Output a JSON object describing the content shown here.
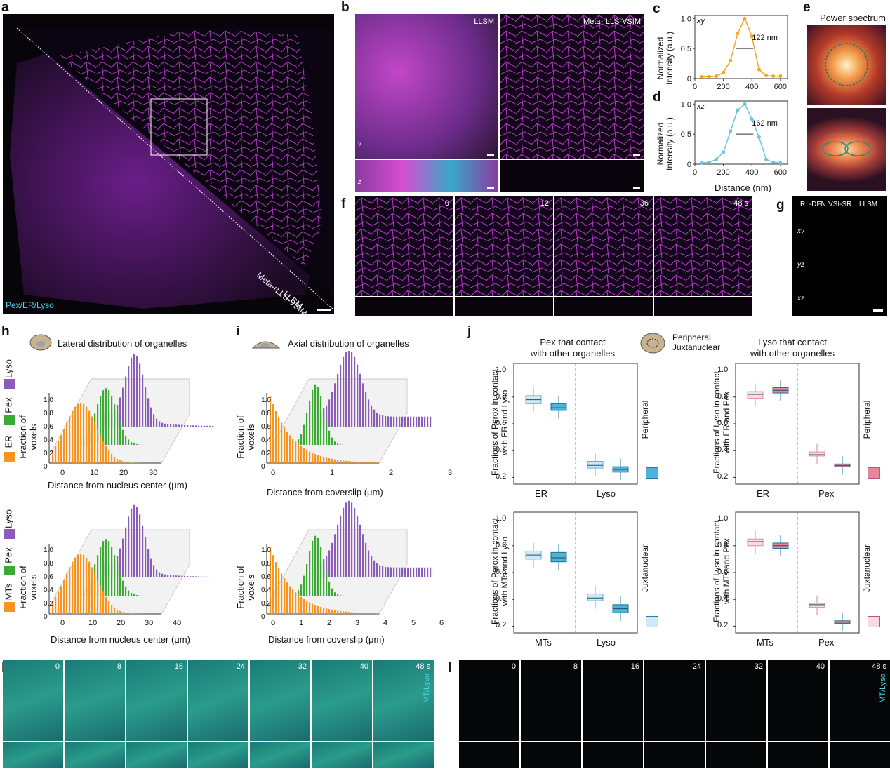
{
  "panels": {
    "a": {
      "label": "a",
      "channels": "Pex/ER/Lyso",
      "diag_top": "Meta-rLLS-VSIM",
      "diag_bottom": "LLSM"
    },
    "b": {
      "label": "b",
      "left_title": "LLSM",
      "right_title": "Meta-rLLS-VSIM",
      "axes_xy": "y",
      "axes_zx": "z",
      "axis_x": "x"
    },
    "c": {
      "label": "c",
      "tag": "xy",
      "annot": "122 nm",
      "ylabel": "Normalized\nIntensity (a.u.)",
      "yticks": [
        "0",
        "0.5",
        "1.0"
      ],
      "xticks": [
        "0",
        "200",
        "400",
        "600"
      ]
    },
    "d": {
      "label": "d",
      "tag": "xz",
      "annot": "162 nm",
      "ylabel": "Normalized\nIntensity (a.u.)",
      "yticks": [
        "0",
        "0.5",
        "1.0"
      ],
      "xticks": [
        "0",
        "200",
        "400",
        "600"
      ],
      "xlabel": "Distance (nm)"
    },
    "e": {
      "label": "e",
      "title": "Power spectrum"
    },
    "f": {
      "label": "f",
      "times": [
        "0",
        "12",
        "36",
        "48 s"
      ]
    },
    "g": {
      "label": "g",
      "cols": [
        "RL-DFN",
        "VSI-SR",
        "LLSM"
      ],
      "rows": [
        "xy",
        "yz",
        "xz"
      ]
    },
    "h": {
      "label": "h",
      "title": "Lateral distribution of organelles",
      "top_legend": [
        "Lyso",
        "Pex",
        "ER"
      ],
      "bottom_legend": [
        "Lyso",
        "Pex",
        "MTs"
      ],
      "xlabel": "Distance from nucleus center (μm)",
      "ylabel": "Fraction of voxels",
      "top_xticks": [
        "0",
        "10",
        "20",
        "30"
      ],
      "bottom_xticks": [
        "0",
        "10",
        "20",
        "30",
        "40"
      ],
      "zticks": [
        "0",
        "0.2",
        "0.4",
        "0.6",
        "0.8",
        "1.0"
      ]
    },
    "i": {
      "label": "i",
      "title": "Axial distribution of organelles",
      "xlabel": "Distance from coverslip (μm)",
      "ylabel": "Fraction of voxels",
      "top_xticks": [
        "0",
        "1",
        "2",
        "3"
      ],
      "bottom_xticks": [
        "0",
        "1",
        "2",
        "3",
        "4",
        "5",
        "6"
      ],
      "zticks": [
        "0",
        "0.2",
        "0.4",
        "0.6",
        "0.8",
        "1.0"
      ]
    },
    "j": {
      "label": "j",
      "pex_title": "Pex that contact\nwith other organelles",
      "lyso_title": "Lyso that contact\nwith other organelles",
      "legend_peripheral": "Peripheral",
      "legend_juxta": "Juxtanuclear",
      "ylabels": [
        "Fractions of Perox in contact\nwith ER and Lyso",
        "Fractions of Lyso in contact\nwith ER and Pex",
        "Fractions of Perox in contact\nwith MTs and Lyso",
        "Fractions of Lyso in contact\nwith MTs and Pex"
      ],
      "xcats": [
        [
          "ER",
          "Lyso"
        ],
        [
          "ER",
          "Pex"
        ],
        [
          "MTs",
          "Lyso"
        ],
        [
          "MTs",
          "Pex"
        ]
      ],
      "yticks_top": [
        "0.2",
        "0.4",
        "0.6",
        "0.8",
        "1.0"
      ],
      "yticks_bottom": [
        "0.2",
        "0.4",
        "0.6",
        "0.8",
        "1.0"
      ],
      "side_top": "Peripheral",
      "side_bottom": "Juxtanuclear"
    },
    "k": {
      "label": "k",
      "times": [
        "0",
        "8",
        "16",
        "24",
        "32",
        "40",
        "48 s"
      ],
      "channels": "MT/Lyso"
    },
    "l": {
      "label": "l",
      "times": [
        "0",
        "8",
        "16",
        "24",
        "32",
        "40",
        "48 s"
      ],
      "channels": "MT/Lyso"
    }
  },
  "colors": {
    "lyso": "#8b5cb8",
    "pex": "#3aaa35",
    "er": "#f7941d",
    "blue": "#4fb3d9",
    "pink": "#e8869b"
  },
  "chart_data": [
    {
      "type": "line",
      "panel": "c",
      "x": [
        50,
        100,
        150,
        200,
        250,
        300,
        350,
        400,
        450,
        500,
        550,
        600
      ],
      "y": [
        0.03,
        0.03,
        0.04,
        0.1,
        0.3,
        0.75,
        1.0,
        0.7,
        0.15,
        0.05,
        0.04,
        0.04
      ],
      "xlim": [
        0,
        650
      ],
      "ylim": [
        0,
        1.05
      ],
      "annotation": "122 nm"
    },
    {
      "type": "line",
      "panel": "d",
      "x": [
        50,
        100,
        150,
        200,
        250,
        300,
        350,
        400,
        450,
        500,
        550,
        600
      ],
      "y": [
        0.02,
        0.03,
        0.08,
        0.2,
        0.55,
        0.9,
        1.0,
        0.75,
        0.45,
        0.08,
        0.03,
        0.02
      ],
      "xlim": [
        0,
        650
      ],
      "ylim": [
        0,
        1.05
      ],
      "annotation": "162 nm"
    }
  ]
}
